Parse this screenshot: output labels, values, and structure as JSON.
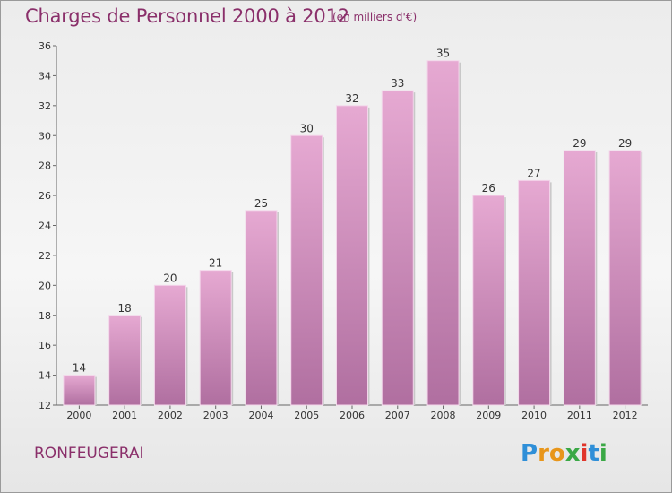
{
  "header": {
    "title": "Charges de Personnel 2000 à 2012",
    "subtitle": "(en milliers d'€)"
  },
  "footer": {
    "place": "RONFEUGERAI",
    "logo_text": "Proxiti",
    "logo_letters": [
      {
        "ch": "P",
        "color": "#2f8fd8"
      },
      {
        "ch": "r",
        "color": "#e8961b"
      },
      {
        "ch": "o",
        "color": "#e8961b"
      },
      {
        "ch": "x",
        "color": "#3aa845"
      },
      {
        "ch": "i",
        "color": "#e0352b"
      },
      {
        "ch": "t",
        "color": "#2f8fd8"
      },
      {
        "ch": "i",
        "color": "#3aa845"
      }
    ]
  },
  "colors": {
    "bar_top": "#e6a9d2",
    "bar_bottom": "#b06fa0",
    "text_accent": "#8a2f6a"
  },
  "chart_data": {
    "type": "bar",
    "categories": [
      "2000",
      "2001",
      "2002",
      "2003",
      "2004",
      "2005",
      "2006",
      "2007",
      "2008",
      "2009",
      "2010",
      "2011",
      "2012"
    ],
    "values": [
      14,
      18,
      20,
      21,
      25,
      30,
      32,
      33,
      35,
      26,
      27,
      29,
      29
    ],
    "title": "Charges de Personnel 2000 à 2012",
    "subtitle": "(en milliers d'€)",
    "xlabel": "",
    "ylabel": "",
    "ylim": [
      12,
      36
    ],
    "yticks": [
      12,
      14,
      16,
      18,
      20,
      22,
      24,
      26,
      28,
      30,
      32,
      34,
      36
    ],
    "grid": false,
    "legend": "none"
  }
}
